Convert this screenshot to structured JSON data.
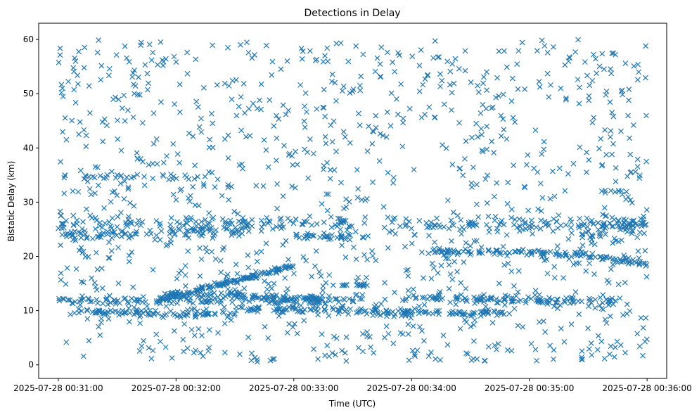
{
  "chart_data": {
    "type": "scatter",
    "title": "Detections in Delay",
    "xlabel": "Time (UTC)",
    "ylabel": "Bistatic Delay (km)",
    "marker": "x",
    "color": "#1f77b4",
    "grid": false,
    "xlim": [
      "2025-07-28 00:30:50",
      "2025-07-28 00:36:10"
    ],
    "ylim": [
      -2.5,
      63
    ],
    "x_ticks": [
      "2025-07-28 00:31:00",
      "2025-07-28 00:32:00",
      "2025-07-28 00:33:00",
      "2025-07-28 00:34:00",
      "2025-07-28 00:35:00",
      "2025-07-28 00:36:00"
    ],
    "y_ticks": [
      0,
      10,
      20,
      30,
      40,
      50,
      60
    ],
    "tracks": [
      {
        "t_start": "2025-07-28 00:31:00",
        "t_end": "2025-07-28 00:36:00",
        "y_start": 26.2,
        "y_end": 26.0,
        "points": 220,
        "jitter": 0.6
      },
      {
        "t_start": "2025-07-28 00:31:00",
        "t_end": "2025-07-28 00:32:40",
        "y_start": 23.8,
        "y_end": 24.8,
        "points": 90,
        "jitter": 0.5
      },
      {
        "t_start": "2025-07-28 00:31:00",
        "t_end": "2025-07-28 00:33:20",
        "y_start": 11.8,
        "y_end": 11.8,
        "points": 120,
        "jitter": 0.4
      },
      {
        "t_start": "2025-07-28 00:31:10",
        "t_end": "2025-07-28 00:32:30",
        "y_start": 9.8,
        "y_end": 9.2,
        "points": 90,
        "jitter": 0.4
      },
      {
        "t_start": "2025-07-28 00:31:50",
        "t_end": "2025-07-28 00:33:00",
        "y_start": 11.8,
        "y_end": 18.3,
        "points": 140,
        "jitter": 0.2
      },
      {
        "t_start": "2025-07-28 00:31:55",
        "t_end": "2025-07-28 00:33:35",
        "y_start": 13.3,
        "y_end": 11.8,
        "points": 110,
        "jitter": 0.3
      },
      {
        "t_start": "2025-07-28 00:32:30",
        "t_end": "2025-07-28 00:34:00",
        "y_start": 10.5,
        "y_end": 9.5,
        "points": 100,
        "jitter": 0.4
      },
      {
        "t_start": "2025-07-28 00:33:55",
        "t_end": "2025-07-28 00:35:45",
        "y_start": 12.3,
        "y_end": 11.8,
        "points": 120,
        "jitter": 0.4
      },
      {
        "t_start": "2025-07-28 00:33:55",
        "t_end": "2025-07-28 00:34:50",
        "y_start": 9.6,
        "y_end": 9.4,
        "points": 60,
        "jitter": 0.3
      },
      {
        "t_start": "2025-07-28 00:33:00",
        "t_end": "2025-07-28 00:33:40",
        "y_start": 23.8,
        "y_end": 23.4,
        "points": 40,
        "jitter": 0.3
      },
      {
        "t_start": "2025-07-28 00:34:05",
        "t_end": "2025-07-28 00:35:30",
        "y_start": 20.9,
        "y_end": 20.4,
        "points": 90,
        "jitter": 0.3
      },
      {
        "t_start": "2025-07-28 00:35:30",
        "t_end": "2025-07-28 00:36:00",
        "y_start": 20.2,
        "y_end": 18.5,
        "points": 40,
        "jitter": 0.3
      },
      {
        "t_start": "2025-07-28 00:31:00",
        "t_end": "2025-07-28 00:32:10",
        "y_start": 34.7,
        "y_end": 34.7,
        "points": 30,
        "jitter": 0.2
      },
      {
        "t_start": "2025-07-28 00:35:25",
        "t_end": "2025-07-28 00:36:00",
        "y_start": 24.0,
        "y_end": 26.0,
        "points": 60,
        "jitter": 1.2
      },
      {
        "t_start": "2025-07-28 00:35:35",
        "t_end": "2025-07-28 00:35:50",
        "y_start": 32.0,
        "y_end": 32.0,
        "points": 8,
        "jitter": 0.1
      },
      {
        "t_start": "2025-07-28 00:33:20",
        "t_end": "2025-07-28 00:33:40",
        "y_start": 14.7,
        "y_end": 14.7,
        "points": 15,
        "jitter": 0.1
      }
    ],
    "scatter": {
      "t_start": "2025-07-28 00:31:00",
      "t_end": "2025-07-28 00:36:00",
      "y_range": [
        0.5,
        60
      ],
      "points": 1100
    }
  }
}
